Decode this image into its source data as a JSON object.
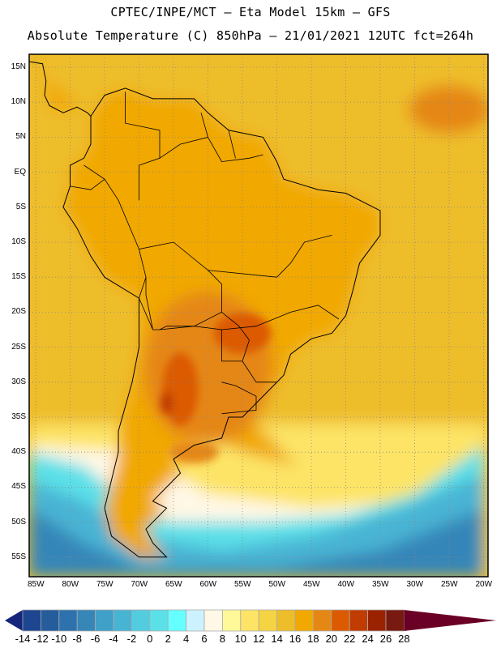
{
  "header": {
    "line1": "CPTEC/INPE/MCT –  Eta Model 15km – GFS",
    "line2": "Absolute Temperature (C) 850hPa – 21/01/2021 12UTC fct=264h"
  },
  "map": {
    "lat_labels": [
      "15N",
      "10N",
      "5N",
      "EQ",
      "5S",
      "10S",
      "15S",
      "20S",
      "25S",
      "30S",
      "35S",
      "40S",
      "45S",
      "50S",
      "55S"
    ],
    "lon_labels": [
      "85W",
      "80W",
      "75W",
      "70W",
      "65W",
      "60W",
      "55W",
      "50W",
      "45W",
      "40W",
      "35W",
      "30W",
      "25W",
      "20W"
    ]
  },
  "colorbar": {
    "labels": [
      "-14",
      "-12",
      "-10",
      "-8",
      "-6",
      "-4",
      "-2",
      "0",
      "2",
      "4",
      "6",
      "8",
      "10",
      "12",
      "14",
      "16",
      "18",
      "20",
      "22",
      "24",
      "26",
      "28"
    ],
    "under_color": "#15257a",
    "over_color": "#6a0025",
    "colors": [
      "#1e4590",
      "#255c9c",
      "#2e72ad",
      "#3686b8",
      "#40a0c8",
      "#48b4d4",
      "#52ccdf",
      "#5ce0e8",
      "#66ffff",
      "#ccf2ff",
      "#fff8e6",
      "#fff99a",
      "#fde466",
      "#f5d443",
      "#eebd2a",
      "#f1a800",
      "#e58714",
      "#dc5a00",
      "#c13c00",
      "#9a2200",
      "#781a10"
    ]
  }
}
